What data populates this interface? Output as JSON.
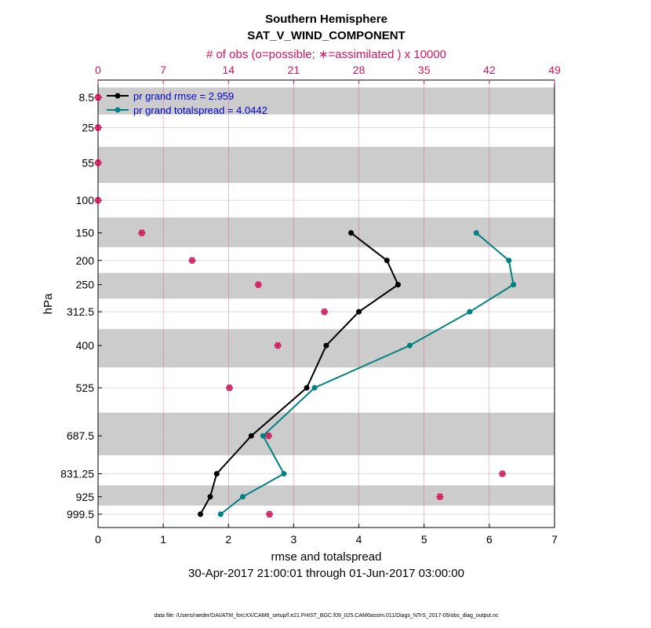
{
  "chart_data": {
    "type": "line",
    "title": "Southern Hemisphere",
    "subtitle": "SAT_V_WIND_COMPONENT",
    "top_axis_label": "# of obs (o=possible; ∗=assimilated ) x 10000",
    "xlabel": "rmse and totalspread",
    "ylabel": "hPa",
    "date_range": "30-Apr-2017 21:00:01 through 01-Jun-2017 03:00:00",
    "footnote": "data file: /Users/raeder/DAI/ATM_forcXX/CAM6_setup/f.e21.FHIST_BGC.f09_025.CAM6assim.011/Diags_NTrS_2017-05/obs_diag_output.nc",
    "xlim": [
      0,
      7
    ],
    "x_ticks": [
      "0",
      "1",
      "2",
      "3",
      "4",
      "5",
      "6",
      "7"
    ],
    "top_xlim": [
      0,
      49
    ],
    "top_ticks": [
      "0",
      "7",
      "14",
      "21",
      "28",
      "35",
      "42",
      "49"
    ],
    "levels": [
      8.5,
      25,
      55,
      100,
      150,
      200,
      250,
      312.5,
      400,
      525,
      687.5,
      831.25,
      925,
      999.5
    ],
    "level_labels": [
      "8.5",
      "25",
      "55",
      "100",
      "150",
      "200",
      "250",
      "312.5",
      "400",
      "525",
      "687.5",
      "831.25",
      "925",
      "999.5"
    ],
    "series": [
      {
        "name": "pr grand rmse",
        "legend": "pr grand rmse = 2.959",
        "color": "#000000",
        "levels": [
          150,
          200,
          250,
          312.5,
          400,
          525,
          687.5,
          831.25,
          925,
          999.5
        ],
        "values": [
          3.88,
          4.43,
          4.6,
          4.0,
          3.5,
          3.2,
          2.35,
          1.82,
          1.72,
          1.57
        ]
      },
      {
        "name": "pr grand totalspread",
        "legend": "pr grand totalspread = 4.0442",
        "color": "#008080",
        "levels": [
          150,
          200,
          250,
          312.5,
          400,
          525,
          687.5,
          831.25,
          925,
          999.5
        ],
        "values": [
          5.8,
          6.3,
          6.37,
          5.7,
          4.78,
          3.32,
          2.53,
          2.85,
          2.22,
          1.88
        ]
      }
    ],
    "obs_counts": {
      "color": "#d4145a",
      "levels": [
        8.5,
        25,
        55,
        100,
        150,
        200,
        250,
        312.5,
        400,
        525,
        687.5,
        831.25,
        925,
        999.5
      ],
      "possible": [
        0.0,
        0.0,
        0.0,
        0.0,
        4.7,
        10.1,
        17.2,
        24.3,
        19.3,
        14.1,
        18.3,
        43.4,
        36.7,
        18.4
      ],
      "assimilated": [
        0.0,
        0.0,
        0.0,
        0.0,
        4.7,
        10.1,
        17.2,
        24.3,
        19.3,
        14.1,
        18.3,
        43.4,
        36.7,
        18.4
      ]
    }
  }
}
